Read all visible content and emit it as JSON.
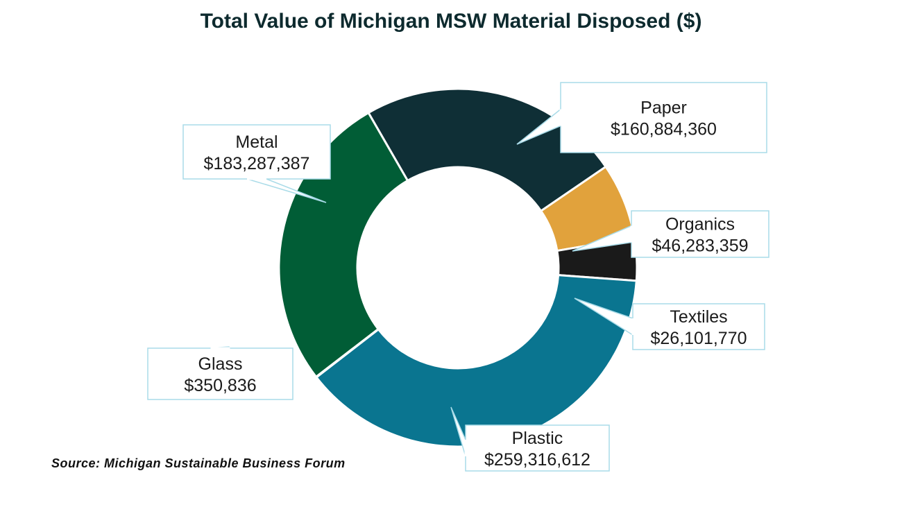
{
  "chart_data": {
    "type": "pie",
    "title": "Total Value of Michigan MSW Material Disposed ($)",
    "categories": [
      "Paper",
      "Organics",
      "Textiles",
      "Plastic",
      "Glass",
      "Metal"
    ],
    "values": [
      160884360,
      46283359,
      26101770,
      259316612,
      350836,
      183287387
    ],
    "value_labels": [
      "$160,884,360",
      "$46,283,359",
      "$26,101,770",
      "$259,316,612",
      "$350,836",
      "$183,287,387"
    ],
    "colors": [
      "#0f2f36",
      "#e1a23c",
      "#1a1a1a",
      "#0a7590",
      "#1e7fa2",
      "#015d36"
    ],
    "legend": "none",
    "hole": "donut",
    "source": "Source: Michigan Sustainable Business Forum"
  }
}
